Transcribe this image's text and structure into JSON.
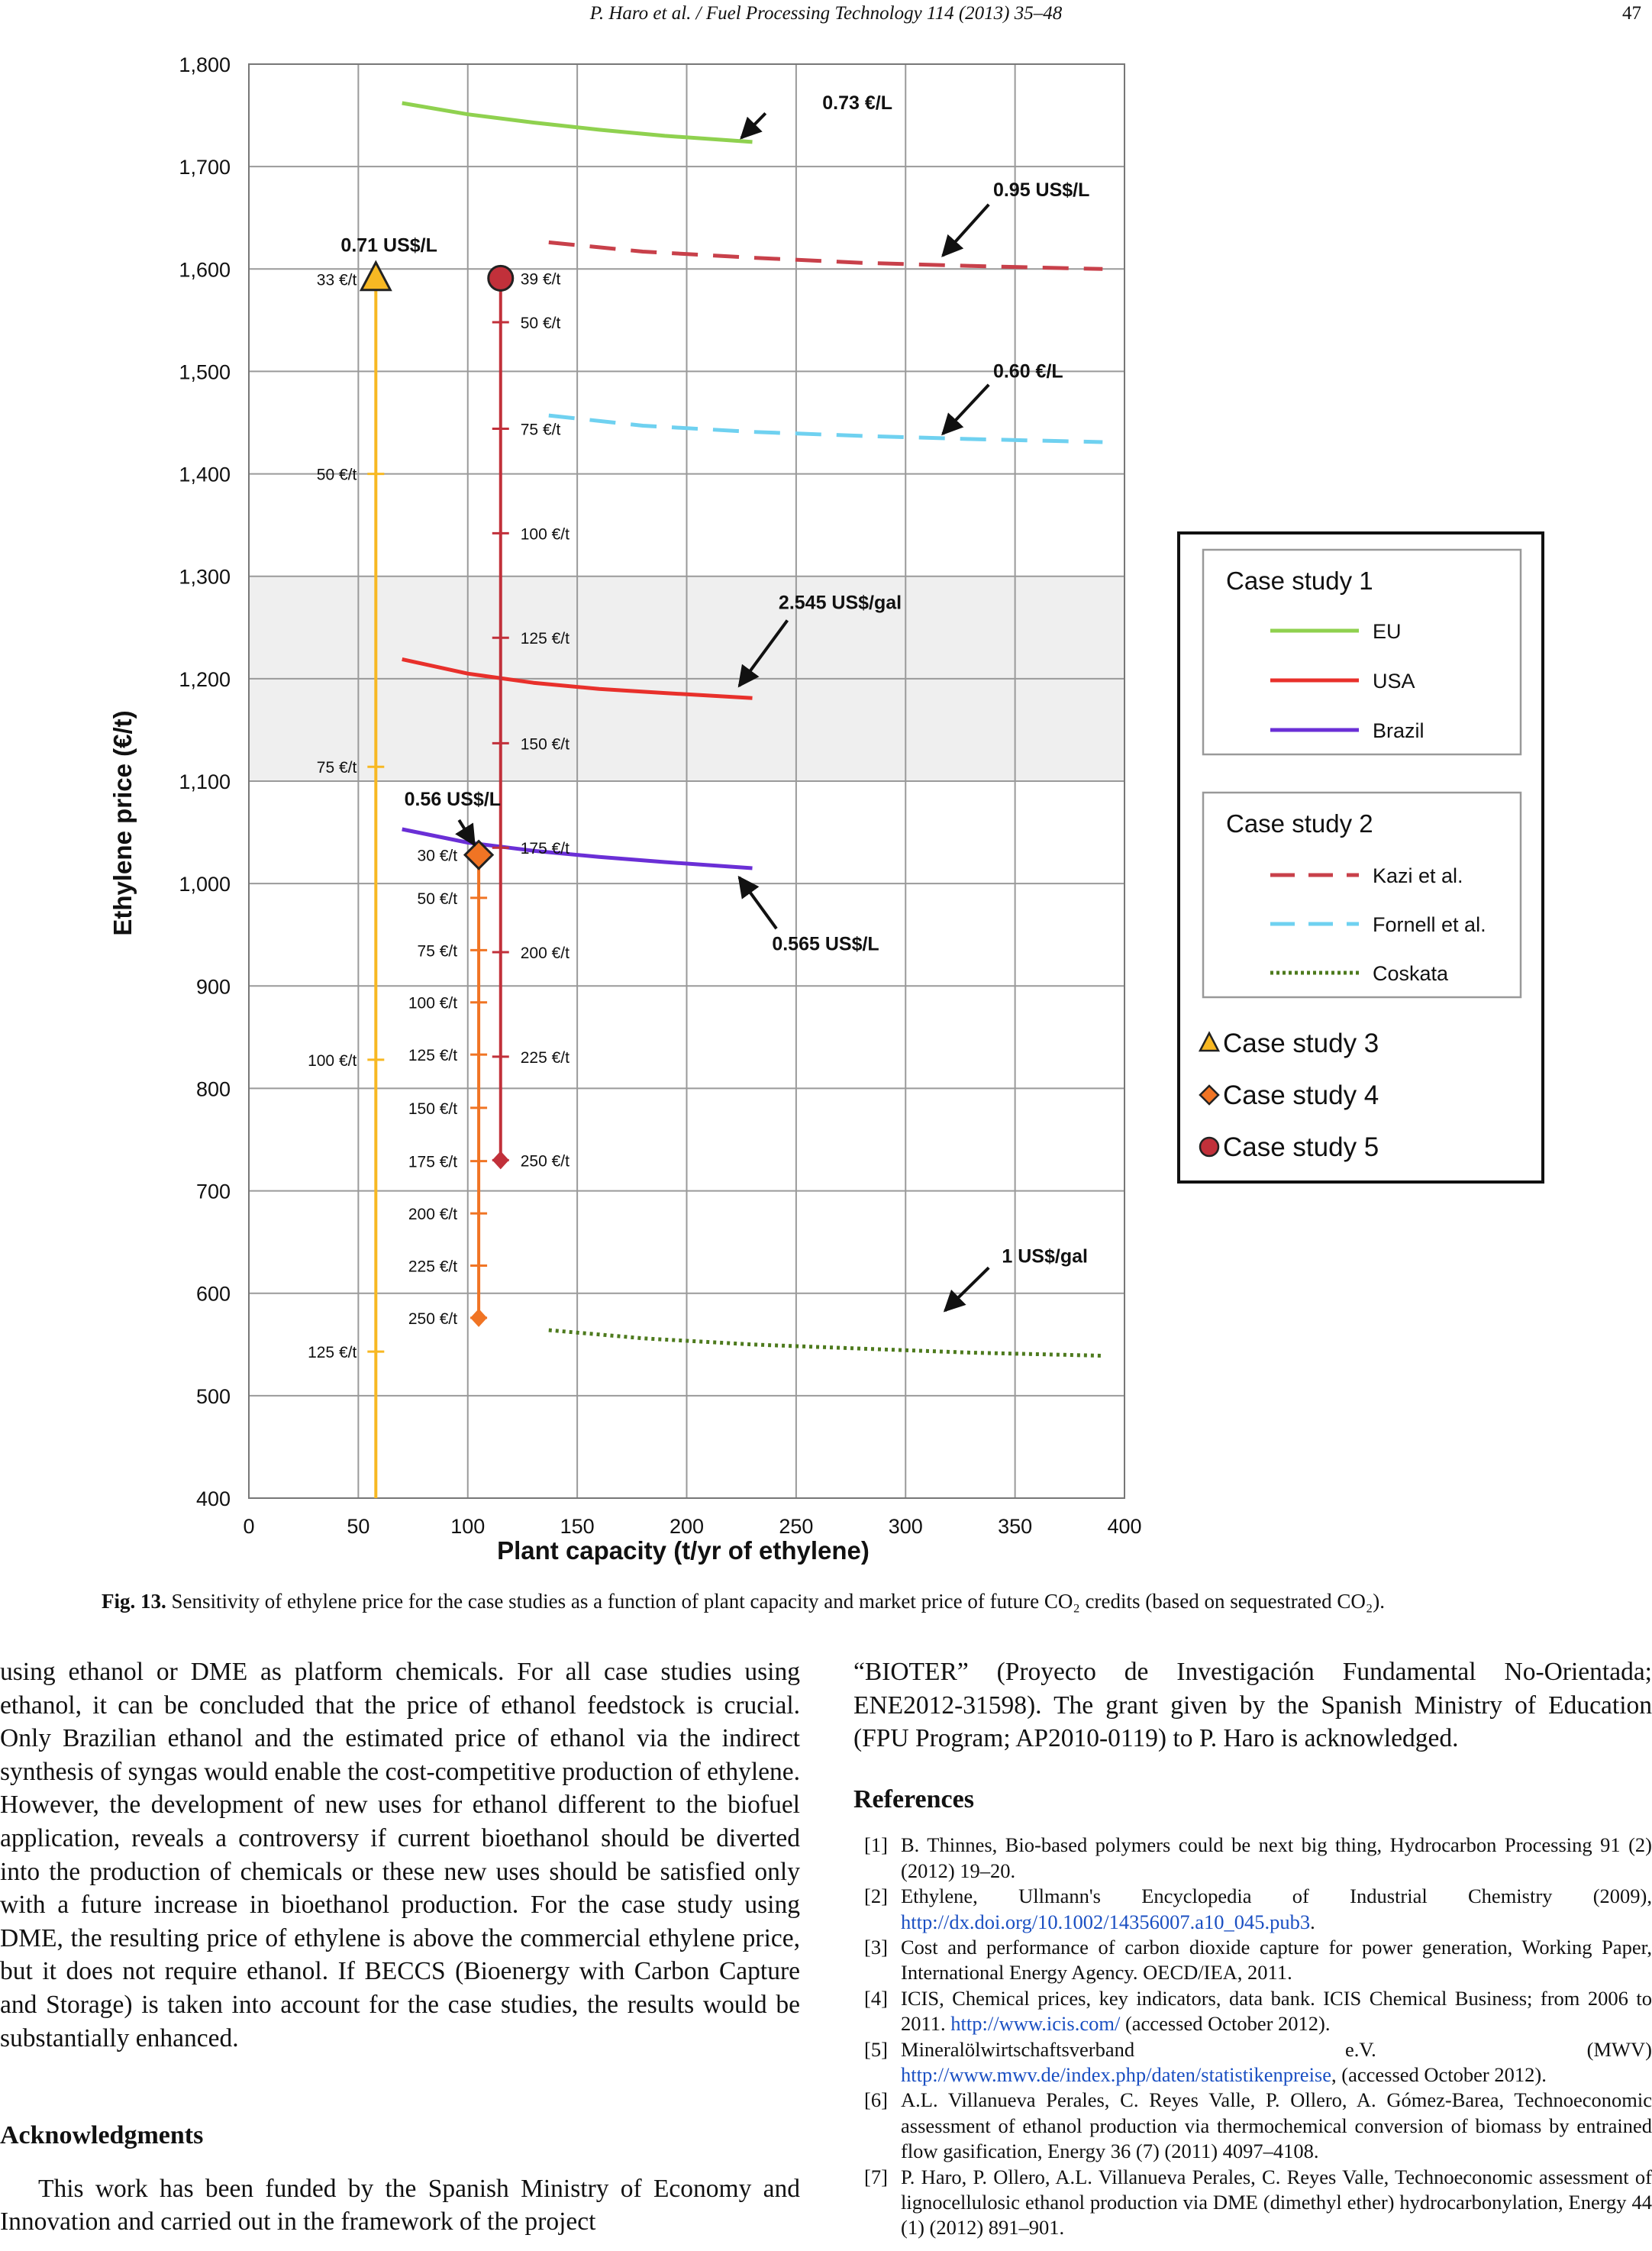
{
  "header": {
    "running_title": "P. Haro et al. / Fuel Processing Technology 114 (2013) 35–48",
    "page_number": "47"
  },
  "figure": {
    "caption_label": "Fig. 13.",
    "caption_text": "Sensitivity of ethylene price for the case studies as a function of plant capacity and market price of future CO₂ credits (based on sequestrated CO₂)."
  },
  "chart_data": {
    "type": "line",
    "xlabel": "Plant capacity (t/yr of ethylene)",
    "ylabel": "Ethylene price (€/t)",
    "xlim": [
      0,
      400
    ],
    "ylim": [
      400,
      1800
    ],
    "x_ticks": [
      "0",
      "50",
      "100",
      "150",
      "200",
      "250",
      "300",
      "350",
      "400"
    ],
    "y_ticks": [
      "400",
      "500",
      "600",
      "700",
      "800",
      "900",
      "1,000",
      "1,100",
      "1,200",
      "1,300",
      "1,400",
      "1,500",
      "1,600",
      "1,700",
      "1,800"
    ],
    "grid": true,
    "shaded_band_y": [
      1100,
      1300
    ],
    "series": [
      {
        "name": "EU",
        "group": "Case study 1",
        "color": "#8fd14f",
        "style": "solid",
        "x": [
          70,
          100,
          130,
          160,
          190,
          230
        ],
        "y": [
          1762,
          1751,
          1743,
          1736,
          1730,
          1724
        ]
      },
      {
        "name": "USA",
        "group": "Case study 1",
        "color": "#e8302b",
        "style": "solid",
        "x": [
          70,
          100,
          130,
          160,
          190,
          230
        ],
        "y": [
          1219,
          1205,
          1196,
          1190,
          1186,
          1181
        ]
      },
      {
        "name": "Brazil",
        "group": "Case study 1",
        "color": "#6a2fd6",
        "style": "solid",
        "x": [
          70,
          100,
          130,
          160,
          190,
          230
        ],
        "y": [
          1053,
          1040,
          1032,
          1026,
          1021,
          1015
        ]
      },
      {
        "name": "Kazi et al.",
        "group": "Case study 2",
        "color": "#c8404a",
        "style": "dashed",
        "x": [
          137,
          180,
          230,
          280,
          330,
          390
        ],
        "y": [
          1626,
          1617,
          1611,
          1606,
          1603,
          1600
        ]
      },
      {
        "name": "Fornell et al.",
        "group": "Case study 2",
        "color": "#6fd1f0",
        "style": "dashed",
        "x": [
          137,
          180,
          230,
          280,
          330,
          390
        ],
        "y": [
          1457,
          1447,
          1441,
          1437,
          1434,
          1431
        ]
      },
      {
        "name": "Coskata",
        "group": "Case study 2",
        "color": "#4d7a1d",
        "style": "dotted",
        "x": [
          137,
          180,
          230,
          280,
          330,
          390
        ],
        "y": [
          564,
          556,
          550,
          546,
          542,
          539
        ]
      }
    ],
    "vertical_series": [
      {
        "name": "Case study 3",
        "color": "#f7b823",
        "x": 58,
        "marker": "triangle",
        "marker_y": 1590,
        "y_bottom": 400,
        "ticks": [
          {
            "label": "33 €/t",
            "y": 1590
          },
          {
            "label": "50 €/t",
            "y": 1400
          },
          {
            "label": "75 €/t",
            "y": 1114
          },
          {
            "label": "100 €/t",
            "y": 828
          },
          {
            "label": "125 €/t",
            "y": 543
          }
        ]
      },
      {
        "name": "Case study 4",
        "color": "#f07424",
        "x": 105,
        "marker": "diamond",
        "marker_y": 1028,
        "y_bottom": 576,
        "ticks": [
          {
            "label": "30 €/t",
            "y": 1028
          },
          {
            "label": "50 €/t",
            "y": 986
          },
          {
            "label": "75 €/t",
            "y": 935
          },
          {
            "label": "100 €/t",
            "y": 884
          },
          {
            "label": "125 €/t",
            "y": 833
          },
          {
            "label": "150 €/t",
            "y": 781
          },
          {
            "label": "175 €/t",
            "y": 729
          },
          {
            "label": "200 €/t",
            "y": 678
          },
          {
            "label": "225 €/t",
            "y": 627
          },
          {
            "label": "250 €/t",
            "y": 576
          }
        ]
      },
      {
        "name": "Case study 5",
        "color": "#c1303a",
        "x": 115,
        "marker": "circle",
        "marker_y": 1591,
        "y_bottom": 730,
        "ticks": [
          {
            "label": "39 €/t",
            "y": 1591
          },
          {
            "label": "50 €/t",
            "y": 1548
          },
          {
            "label": "75 €/t",
            "y": 1444
          },
          {
            "label": "100 €/t",
            "y": 1342
          },
          {
            "label": "125 €/t",
            "y": 1240
          },
          {
            "label": "150 €/t",
            "y": 1137
          },
          {
            "label": "175 €/t",
            "y": 1035
          },
          {
            "label": "200 €/t",
            "y": 933
          },
          {
            "label": "225 €/t",
            "y": 831
          },
          {
            "label": "250 €/t",
            "y": 730
          }
        ]
      }
    ],
    "annotations": [
      {
        "text": "0.73 €/L",
        "text_xy": [
          262,
          1756
        ],
        "arrow_from": [
          236,
          1752
        ],
        "arrow_to": [
          225,
          1728
        ]
      },
      {
        "text": "0.95 US$/L",
        "text_xy": [
          340,
          1671
        ],
        "arrow_from": [
          338,
          1663
        ],
        "arrow_to": [
          317,
          1613
        ]
      },
      {
        "text": "0.71 US$/L",
        "text_xy": [
          42,
          1617
        ],
        "arrow_from": null,
        "arrow_to": null
      },
      {
        "text": "0.60 €/L",
        "text_xy": [
          340,
          1494
        ],
        "arrow_from": [
          338,
          1487
        ],
        "arrow_to": [
          317,
          1439
        ]
      },
      {
        "text": "2.545 US$/gal",
        "text_xy": [
          242,
          1268
        ],
        "arrow_from": [
          246,
          1257
        ],
        "arrow_to": [
          224,
          1193
        ]
      },
      {
        "text": "0.56 US$/L",
        "text_xy": [
          71,
          1076
        ],
        "arrow_from": [
          96,
          1062
        ],
        "arrow_to": [
          103,
          1038
        ]
      },
      {
        "text": "0.565 US$/L",
        "text_xy": [
          239,
          935
        ],
        "arrow_from": [
          241,
          956
        ],
        "arrow_to": [
          224,
          1006
        ]
      },
      {
        "text": "1 US$/gal",
        "text_xy": [
          344,
          630
        ],
        "arrow_from": [
          338,
          625
        ],
        "arrow_to": [
          318,
          583
        ]
      }
    ],
    "legend": {
      "placement": "right",
      "group1_title": "Case study 1",
      "group2_title": "Case study 2",
      "markers": [
        "Case study 3",
        "Case study 4",
        "Case study 5"
      ]
    }
  },
  "body": {
    "left_paragraph": "using ethanol or DME as platform chemicals. For all case studies using ethanol, it can be concluded that the price of ethanol feedstock is crucial. Only Brazilian ethanol and the estimated price of ethanol via the indirect synthesis of syngas would enable the cost-competitive production of ethylene. However, the development of new uses for ethanol different to the biofuel application, reveals a controversy if current bioethanol should be diverted into the production of chemicals or these new uses should be satisfied only with a future increase in bioethanol production. For the case study using DME, the resulting price of ethylene is above the commercial ethylene price, but it does not require ethanol. If BECCS (Bioenergy with Carbon Capture and Storage) is taken into account for the case studies, the results would be substantially enhanced.",
    "ack_heading": "Acknowledgments",
    "ack_paragraph": "This work has been funded by the Spanish Ministry of Economy and Innovation and carried out in the framework of the project",
    "right_paragraph": "“BIOTER” (Proyecto de Investigación Fundamental No-Orientada; ENE2012-31598). The grant given by the Spanish Ministry of Education (FPU Program; AP2010-0119) to P. Haro is acknowledged.",
    "ref_heading": "References",
    "references": [
      {
        "num": "[1]",
        "text": "B. Thinnes, Bio-based polymers could be next big thing, Hydrocarbon Processing 91 (2) (2012) 19–20.",
        "link": ""
      },
      {
        "num": "[2]",
        "text": "Ethylene, Ullmann's Encyclopedia of Industrial Chemistry (2009),",
        "link": "http://dx.doi.org/10.1002/14356007.a10_045.pub3",
        "after": "."
      },
      {
        "num": "[3]",
        "text": "Cost and performance of carbon dioxide capture for power generation, Working Paper, International Energy Agency. OECD/IEA, 2011.",
        "link": ""
      },
      {
        "num": "[4]",
        "text": "ICIS, Chemical prices, key indicators, data bank. ICIS Chemical Business; from 2006 to 2011.",
        "link": "http://www.icis.com/",
        "after": " (accessed October 2012)."
      },
      {
        "num": "[5]",
        "text": "Mineralölwirtschaftsverband e.V. (MWV)",
        "link": "http://www.mwv.de/index.php/daten/statistikenpreise",
        "after": ", (accessed October 2012)."
      },
      {
        "num": "[6]",
        "text": "A.L. Villanueva Perales, C. Reyes Valle, P. Ollero, A. Gómez-Barea, Technoeconomic assessment of ethanol production via thermochemical conversion of biomass by entrained flow gasification, Energy 36 (7) (2011) 4097–4108.",
        "link": ""
      },
      {
        "num": "[7]",
        "text": "P. Haro, P. Ollero, A.L. Villanueva Perales, C. Reyes Valle, Technoeconomic assessment of lignocellulosic ethanol production via DME (dimethyl ether) hydrocarbonylation, Energy 44 (1) (2012) 891–901.",
        "link": ""
      }
    ]
  }
}
